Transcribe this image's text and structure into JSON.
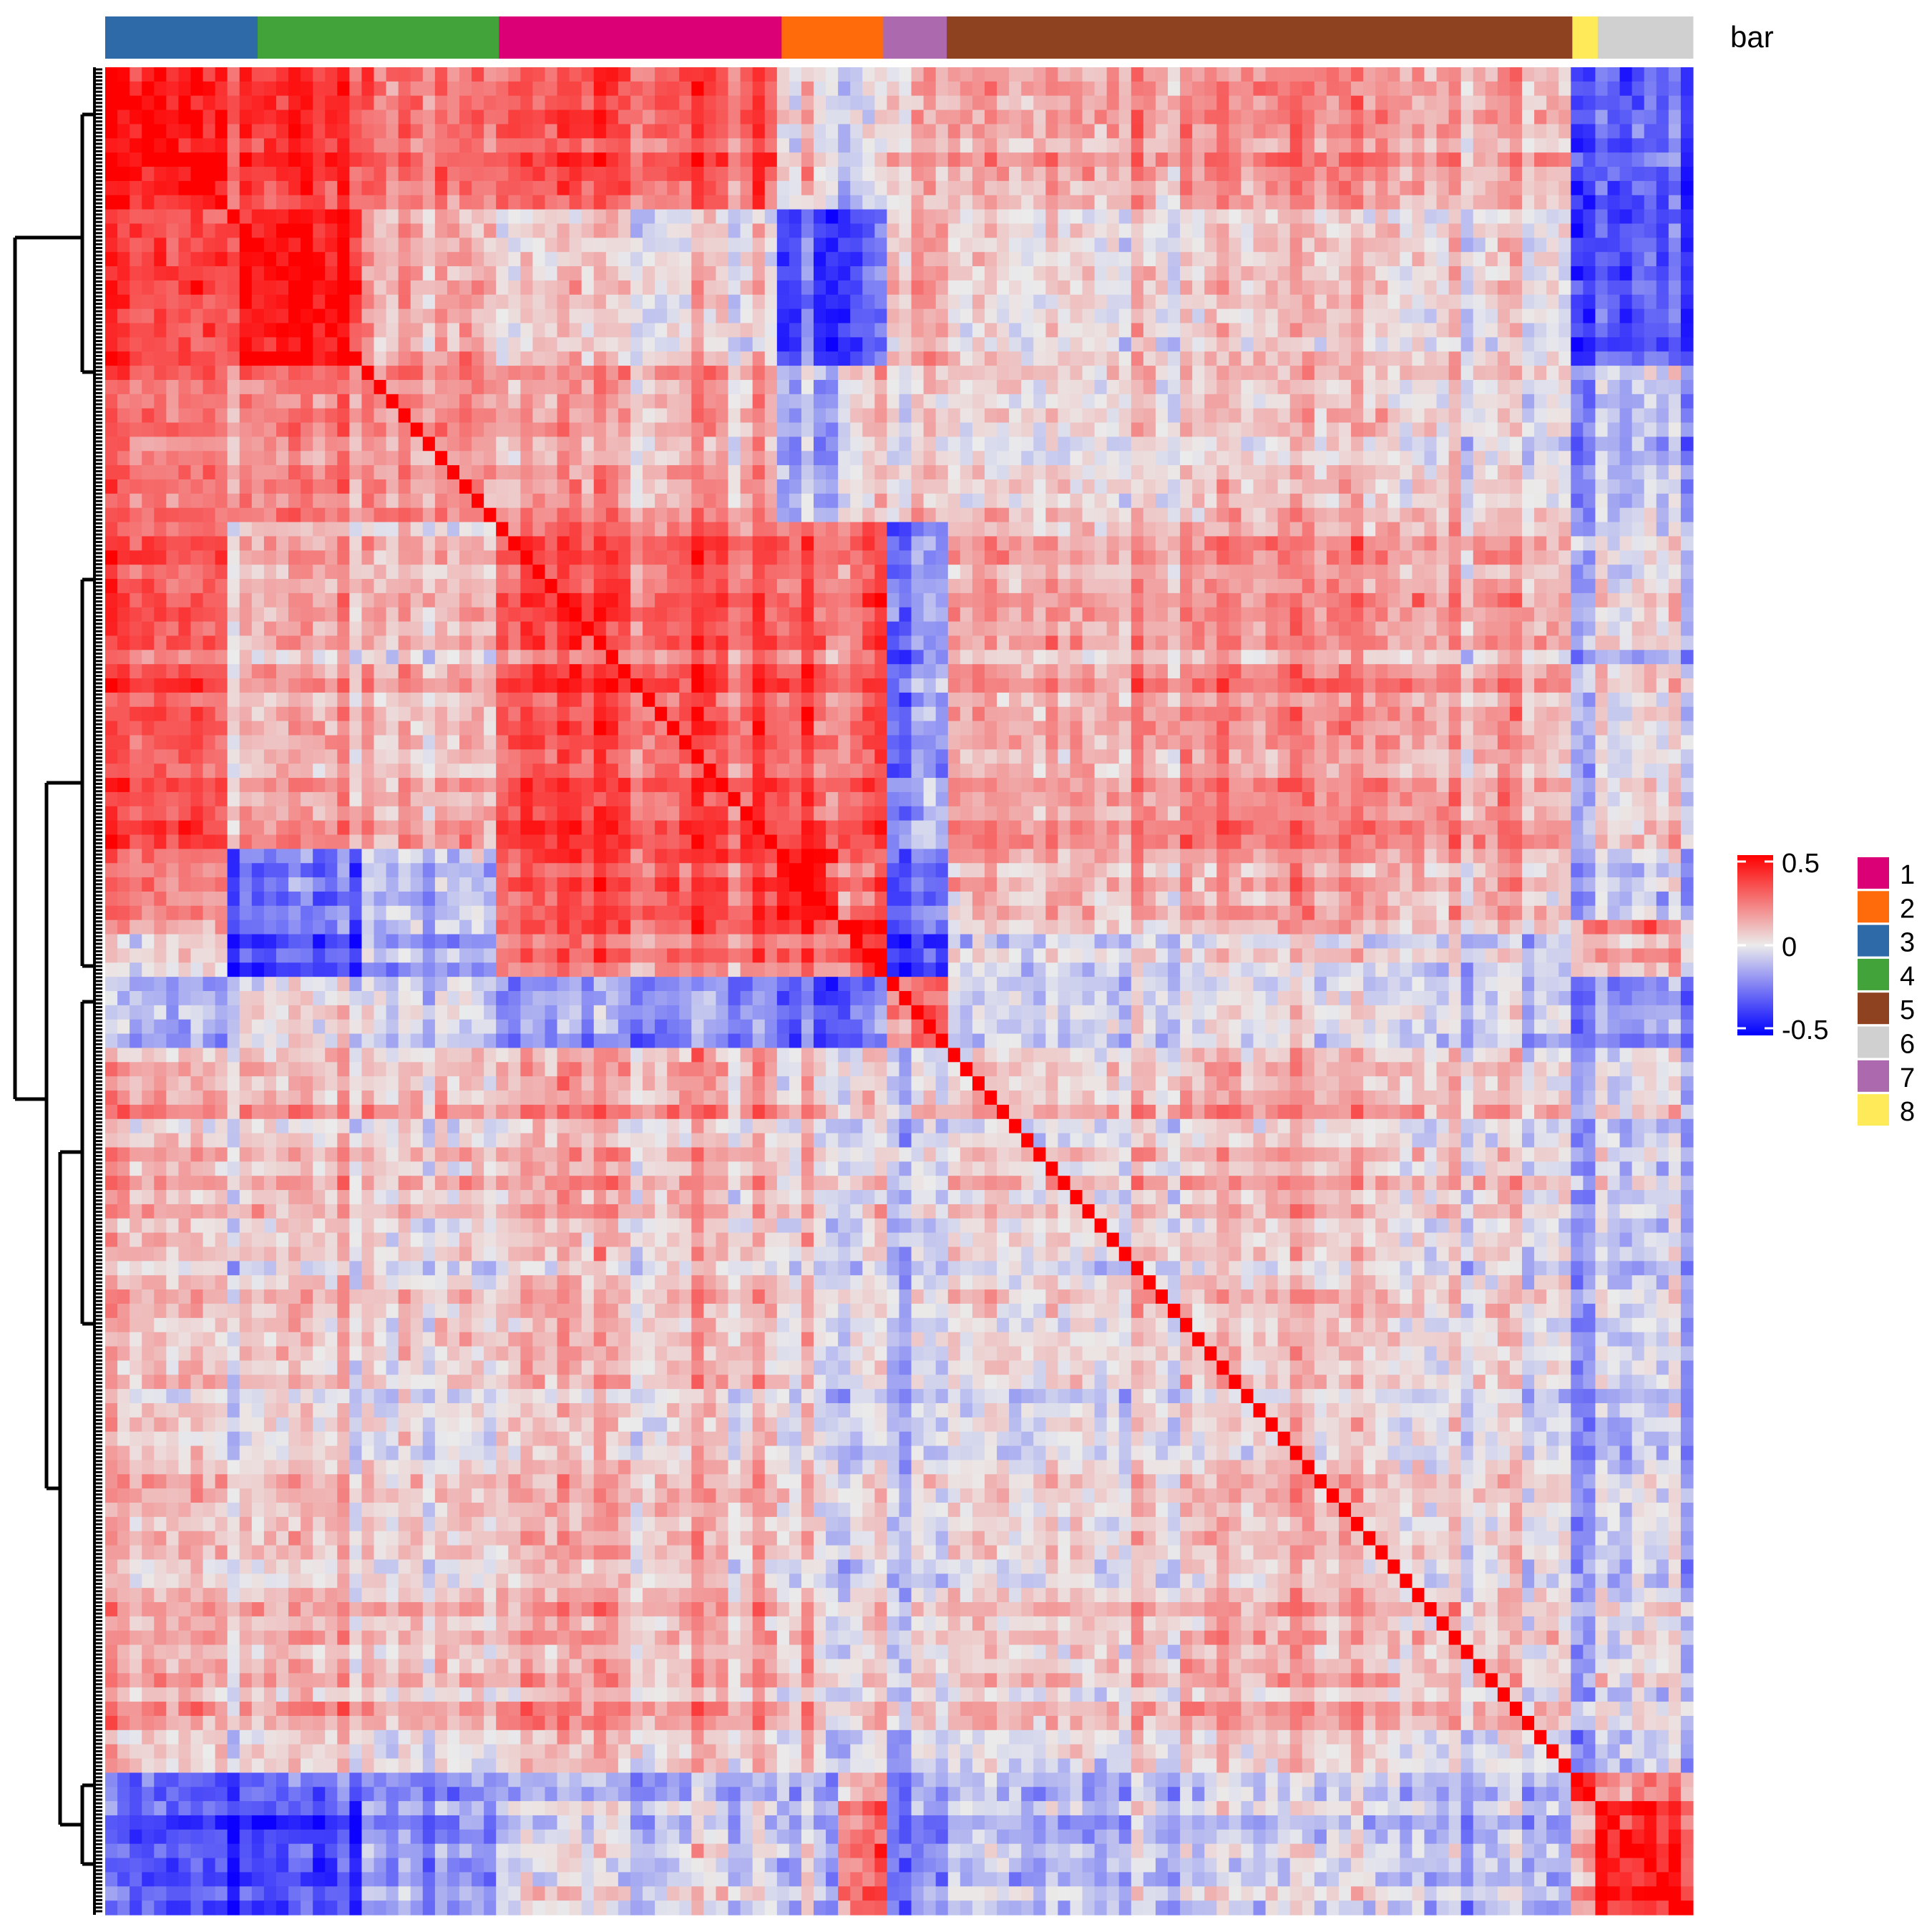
{
  "chart_data": {
    "type": "heatmap",
    "title": "",
    "annotation": {
      "name": "bar",
      "column_order": [
        "3",
        "4",
        "1",
        "2",
        "7",
        "5",
        "8",
        "6"
      ],
      "column_group_sizes": [
        48,
        76,
        89,
        32,
        20,
        197,
        8,
        30
      ],
      "colors": {
        "1": "#DC0077",
        "2": "#FF6B0A",
        "3": "#2E69A8",
        "4": "#41A33A",
        "5": "#8E4220",
        "6": "#D0D0D0",
        "7": "#AC69AE",
        "8": "#FFEA5A"
      }
    },
    "legend_annotation": {
      "entries": [
        "1",
        "2",
        "3",
        "4",
        "5",
        "6",
        "7",
        "8"
      ]
    },
    "color_scale": {
      "min": -0.5,
      "mid": 0,
      "max": 0.5,
      "colors": [
        "#0000FF",
        "#EBEBEB",
        "#FF0000"
      ],
      "tick_labels": [
        "0.5",
        "0",
        "-0.5"
      ]
    },
    "block_sizes": [
      37,
      45,
      42,
      89,
      18,
      14,
      20,
      197,
      8,
      30
    ],
    "block_means": [
      [
        0.45,
        0.35,
        0.25,
        0.3,
        0.05,
        -0.05,
        0.1,
        0.15,
        -0.35,
        -0.3
      ],
      [
        0.35,
        0.45,
        0.15,
        0.05,
        -0.3,
        -0.3,
        0.15,
        0.05,
        -0.35,
        -0.3
      ],
      [
        0.25,
        0.2,
        0.2,
        0.15,
        -0.1,
        0.05,
        0.05,
        0.05,
        -0.2,
        -0.1
      ],
      [
        0.3,
        0.1,
        0.1,
        0.3,
        0.3,
        0.3,
        -0.2,
        0.15,
        -0.1,
        0.0
      ],
      [
        0.2,
        -0.3,
        -0.1,
        0.3,
        0.45,
        0.25,
        -0.3,
        0.1,
        -0.15,
        -0.1
      ],
      [
        0.1,
        -0.3,
        -0.1,
        0.3,
        0.35,
        0.45,
        -0.3,
        0.05,
        0.2,
        0.2
      ],
      [
        -0.1,
        0.05,
        0.0,
        -0.15,
        -0.25,
        -0.2,
        0.3,
        0.0,
        -0.2,
        -0.15
      ],
      [
        0.1,
        0.05,
        0.05,
        0.1,
        0.05,
        0.0,
        -0.05,
        0.05,
        -0.15,
        -0.05
      ],
      [
        -0.3,
        -0.3,
        -0.2,
        -0.15,
        -0.1,
        0.1,
        -0.2,
        -0.1,
        0.5,
        0.2
      ],
      [
        -0.3,
        -0.35,
        -0.15,
        0.0,
        -0.05,
        0.3,
        -0.2,
        -0.05,
        0.2,
        0.45
      ]
    ],
    "diagonal_value": 1,
    "row_dendrogram": true
  }
}
